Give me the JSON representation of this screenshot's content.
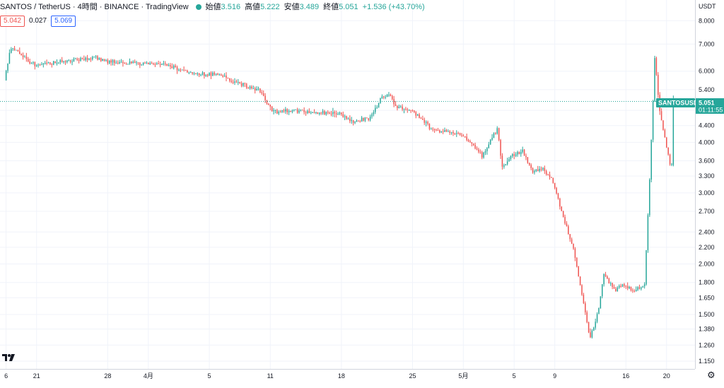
{
  "header": {
    "symbol": "SANTOS / TetherUS · 4時間 · BINANCE · TradingView",
    "open_label": "始値",
    "open": "3.516",
    "high_label": "高値",
    "high": "5.222",
    "low_label": "安値",
    "low": "3.489",
    "close_label": "終値",
    "close": "5.051",
    "change": "+1.536 (+43.70%)"
  },
  "bid": "5.042",
  "spread": "0.027",
  "ask": "5.069",
  "axis": {
    "currency": "USDT"
  },
  "price_tag": {
    "symbol": "SANTOSUSDT",
    "price": "5.051",
    "countdown": "01:11:55"
  },
  "colors": {
    "up": "#26a69a",
    "down": "#ef5350",
    "grid": "#f0f3fa",
    "last_line": "#26a69a"
  },
  "icons": {
    "logo": "tradingview-logo-icon",
    "settings": "gear-icon"
  },
  "chart_data": {
    "type": "candlestick",
    "y_scale": "log",
    "ylim": [
      1.1,
      9.0
    ],
    "y_ticks": [
      8.0,
      7.0,
      6.0,
      5.4,
      4.8,
      4.4,
      4.0,
      3.6,
      3.3,
      3.0,
      2.7,
      2.4,
      2.2,
      2.0,
      1.8,
      1.65,
      1.5,
      1.38,
      1.26,
      1.15
    ],
    "y_tick_labels": [
      "8.000",
      "7.000",
      "6.000",
      "5.400",
      "4.800",
      "4.400",
      "4.000",
      "3.600",
      "3.300",
      "3.000",
      "2.700",
      "2.400",
      "2.200",
      "2.000",
      "1.800",
      "1.650",
      "1.500",
      "1.380",
      "1.260",
      "1.150"
    ],
    "x_ticks": [
      {
        "label": "6",
        "day": 0
      },
      {
        "label": "21",
        "day": 3
      },
      {
        "label": "28",
        "day": 10
      },
      {
        "label": "4月",
        "day": 14
      },
      {
        "label": "5",
        "day": 20
      },
      {
        "label": "11",
        "day": 26
      },
      {
        "label": "18",
        "day": 33
      },
      {
        "label": "25",
        "day": 40
      },
      {
        "label": "5月",
        "day": 45
      },
      {
        "label": "5",
        "day": 50
      },
      {
        "label": "9",
        "day": 54
      },
      {
        "label": "16",
        "day": 61
      },
      {
        "label": "20",
        "day": 65
      }
    ],
    "day_range": [
      -0.6,
      67.8
    ],
    "bars_per_day": 6,
    "anchors": [
      [
        0,
        5.7
      ],
      [
        0.6,
        6.9
      ],
      [
        1.5,
        6.6
      ],
      [
        3,
        6.2
      ],
      [
        5,
        6.3
      ],
      [
        7,
        6.4
      ],
      [
        9,
        6.5
      ],
      [
        10,
        6.35
      ],
      [
        12,
        6.3
      ],
      [
        14,
        6.25
      ],
      [
        16,
        6.2
      ],
      [
        18,
        6.0
      ],
      [
        19.5,
        5.9
      ],
      [
        21,
        5.9
      ],
      [
        23,
        5.6
      ],
      [
        25,
        5.4
      ],
      [
        26.5,
        4.75
      ],
      [
        28,
        4.8
      ],
      [
        30,
        4.75
      ],
      [
        33,
        4.7
      ],
      [
        34,
        4.5
      ],
      [
        36,
        4.6
      ],
      [
        37,
        5.1
      ],
      [
        37.8,
        5.3
      ],
      [
        38.5,
        4.9
      ],
      [
        40,
        4.8
      ],
      [
        41,
        4.6
      ],
      [
        42,
        4.3
      ],
      [
        43.5,
        4.25
      ],
      [
        45,
        4.2
      ],
      [
        46,
        4.0
      ],
      [
        47,
        3.7
      ],
      [
        48,
        4.1
      ],
      [
        48.5,
        4.3
      ],
      [
        49,
        3.5
      ],
      [
        50,
        3.7
      ],
      [
        51,
        3.8
      ],
      [
        52,
        3.4
      ],
      [
        53,
        3.45
      ],
      [
        54,
        3.2
      ],
      [
        55,
        2.6
      ],
      [
        56,
        2.2
      ],
      [
        57,
        1.6
      ],
      [
        57.6,
        1.3
      ],
      [
        58.5,
        1.55
      ],
      [
        59,
        1.9
      ],
      [
        60,
        1.72
      ],
      [
        61,
        1.78
      ],
      [
        62,
        1.72
      ],
      [
        63,
        1.78
      ],
      [
        63.5,
        3.2
      ],
      [
        64,
        6.4
      ],
      [
        64.5,
        4.8
      ],
      [
        65,
        4.1
      ],
      [
        65.5,
        3.55
      ]
    ],
    "last_candle": {
      "open": 3.516,
      "high": 5.222,
      "low": 3.489,
      "close": 5.051
    },
    "last_price": 5.051
  }
}
